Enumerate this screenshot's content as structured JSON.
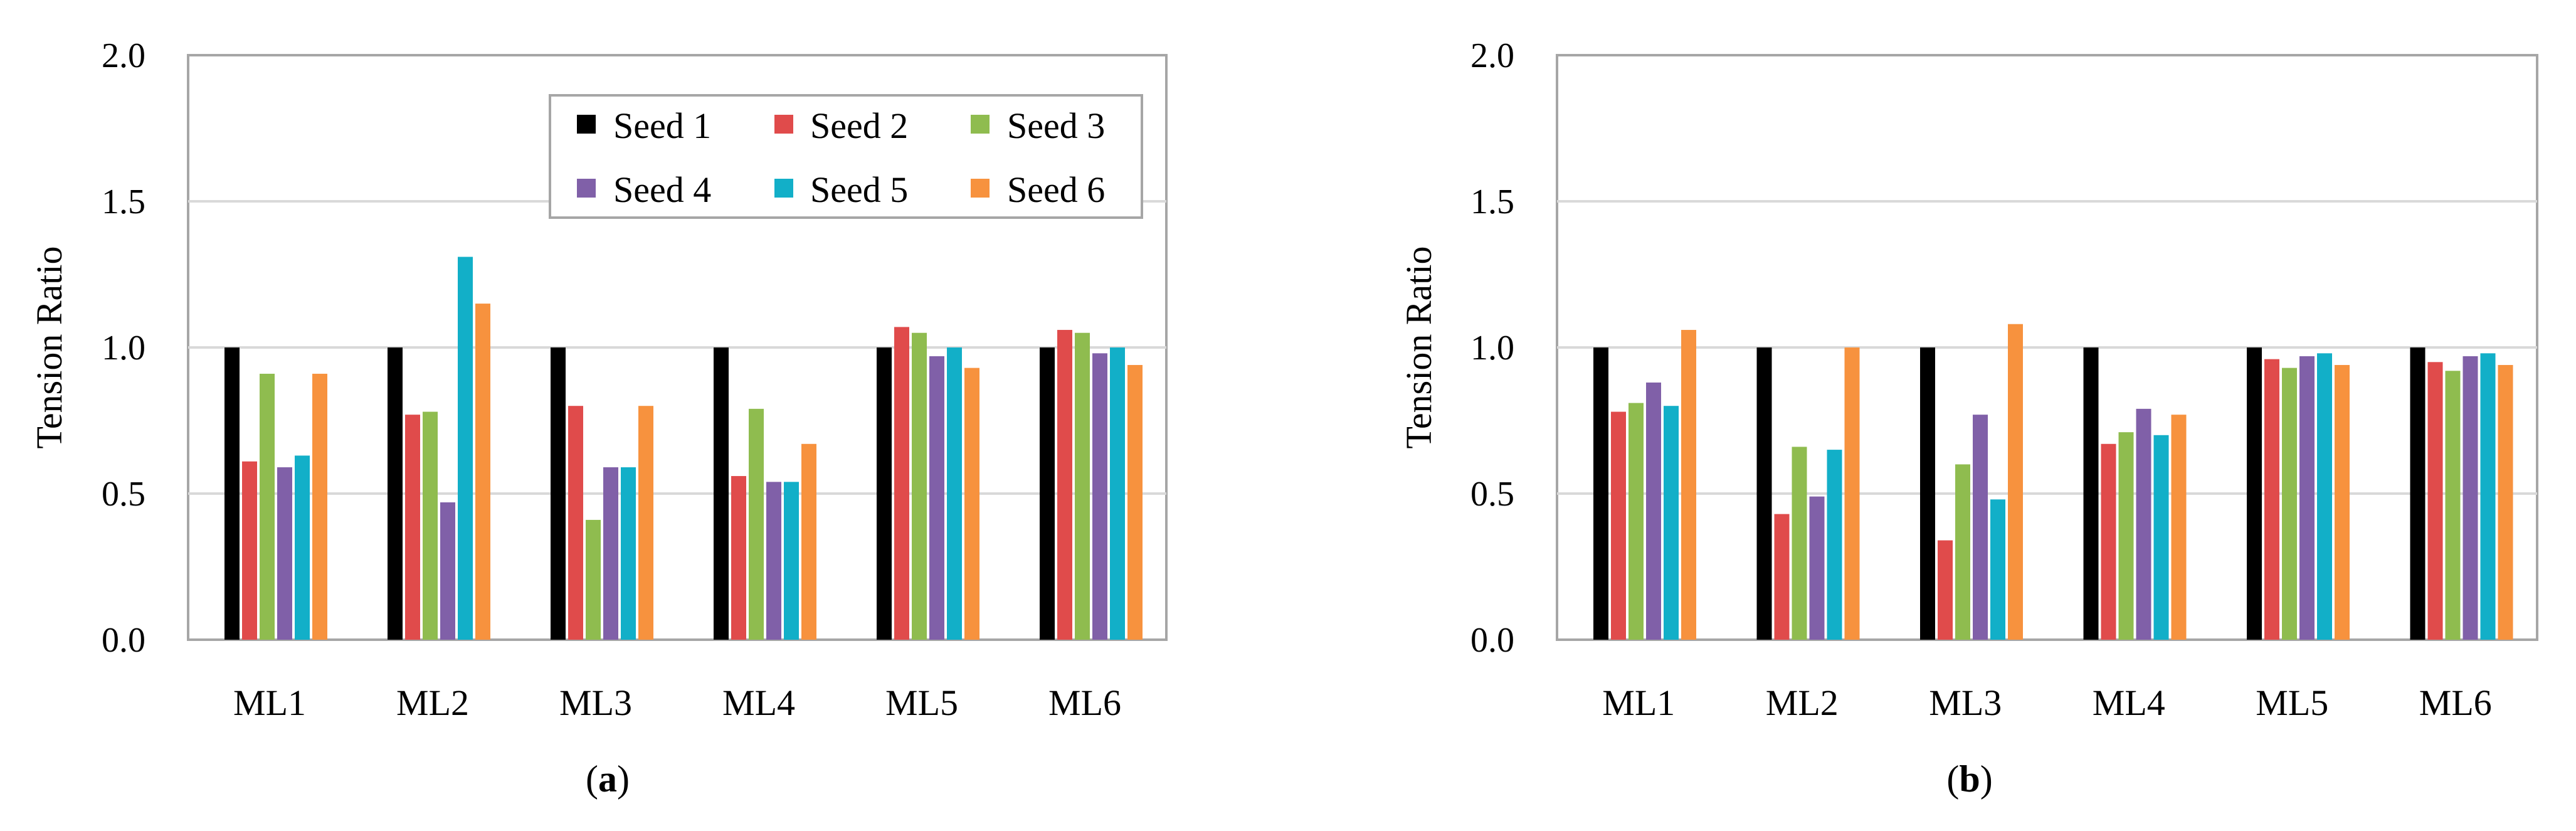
{
  "chart_data": [
    {
      "type": "bar",
      "panel_label": "a",
      "title": "",
      "xlabel": "",
      "ylabel": "Tension Ratio",
      "ylim": [
        0,
        2
      ],
      "yticks": [
        "0.0",
        "0.5",
        "1.0",
        "1.5",
        "2.0"
      ],
      "grid": true,
      "legend": "top-right",
      "categories": [
        "ML1",
        "ML2",
        "ML3",
        "ML4",
        "ML5",
        "ML6"
      ],
      "series": [
        {
          "name": "Seed 1",
          "values": [
            1.0,
            1.0,
            1.0,
            1.0,
            1.0,
            1.0
          ]
        },
        {
          "name": "Seed 2",
          "values": [
            0.61,
            0.77,
            0.8,
            0.56,
            1.07,
            1.06
          ]
        },
        {
          "name": "Seed 3",
          "values": [
            0.91,
            0.78,
            0.41,
            0.79,
            1.05,
            1.05
          ]
        },
        {
          "name": "Seed 4",
          "values": [
            0.59,
            0.47,
            0.59,
            0.54,
            0.97,
            0.98
          ]
        },
        {
          "name": "Seed 5",
          "values": [
            0.63,
            1.31,
            0.59,
            0.54,
            1.0,
            1.0
          ]
        },
        {
          "name": "Seed 6",
          "values": [
            0.91,
            1.15,
            0.8,
            0.67,
            0.93,
            0.94
          ]
        }
      ]
    },
    {
      "type": "bar",
      "panel_label": "b",
      "title": "",
      "xlabel": "",
      "ylabel": "Tension Ratio",
      "ylim": [
        0,
        2
      ],
      "yticks": [
        "0.0",
        "0.5",
        "1.0",
        "1.5",
        "2.0"
      ],
      "grid": true,
      "legend": "none",
      "categories": [
        "ML1",
        "ML2",
        "ML3",
        "ML4",
        "ML5",
        "ML6"
      ],
      "series": [
        {
          "name": "Seed 1",
          "values": [
            1.0,
            1.0,
            1.0,
            1.0,
            1.0,
            1.0
          ]
        },
        {
          "name": "Seed 2",
          "values": [
            0.78,
            0.43,
            0.34,
            0.67,
            0.96,
            0.95
          ]
        },
        {
          "name": "Seed 3",
          "values": [
            0.81,
            0.66,
            0.6,
            0.71,
            0.93,
            0.92
          ]
        },
        {
          "name": "Seed 4",
          "values": [
            0.88,
            0.49,
            0.77,
            0.79,
            0.97,
            0.97
          ]
        },
        {
          "name": "Seed 5",
          "values": [
            0.8,
            0.65,
            0.48,
            0.7,
            0.98,
            0.98
          ]
        },
        {
          "name": "Seed 6",
          "values": [
            1.06,
            1.0,
            1.08,
            0.77,
            0.94,
            0.94
          ]
        }
      ]
    }
  ],
  "colors": {
    "Seed 1": "#000000",
    "Seed 2": "#e04b4b",
    "Seed 3": "#8fbc4f",
    "Seed 4": "#8060a8",
    "Seed 5": "#12afc8",
    "Seed 6": "#f7923e",
    "grid": "#d9d9d9",
    "frame": "#a6a6a6"
  }
}
